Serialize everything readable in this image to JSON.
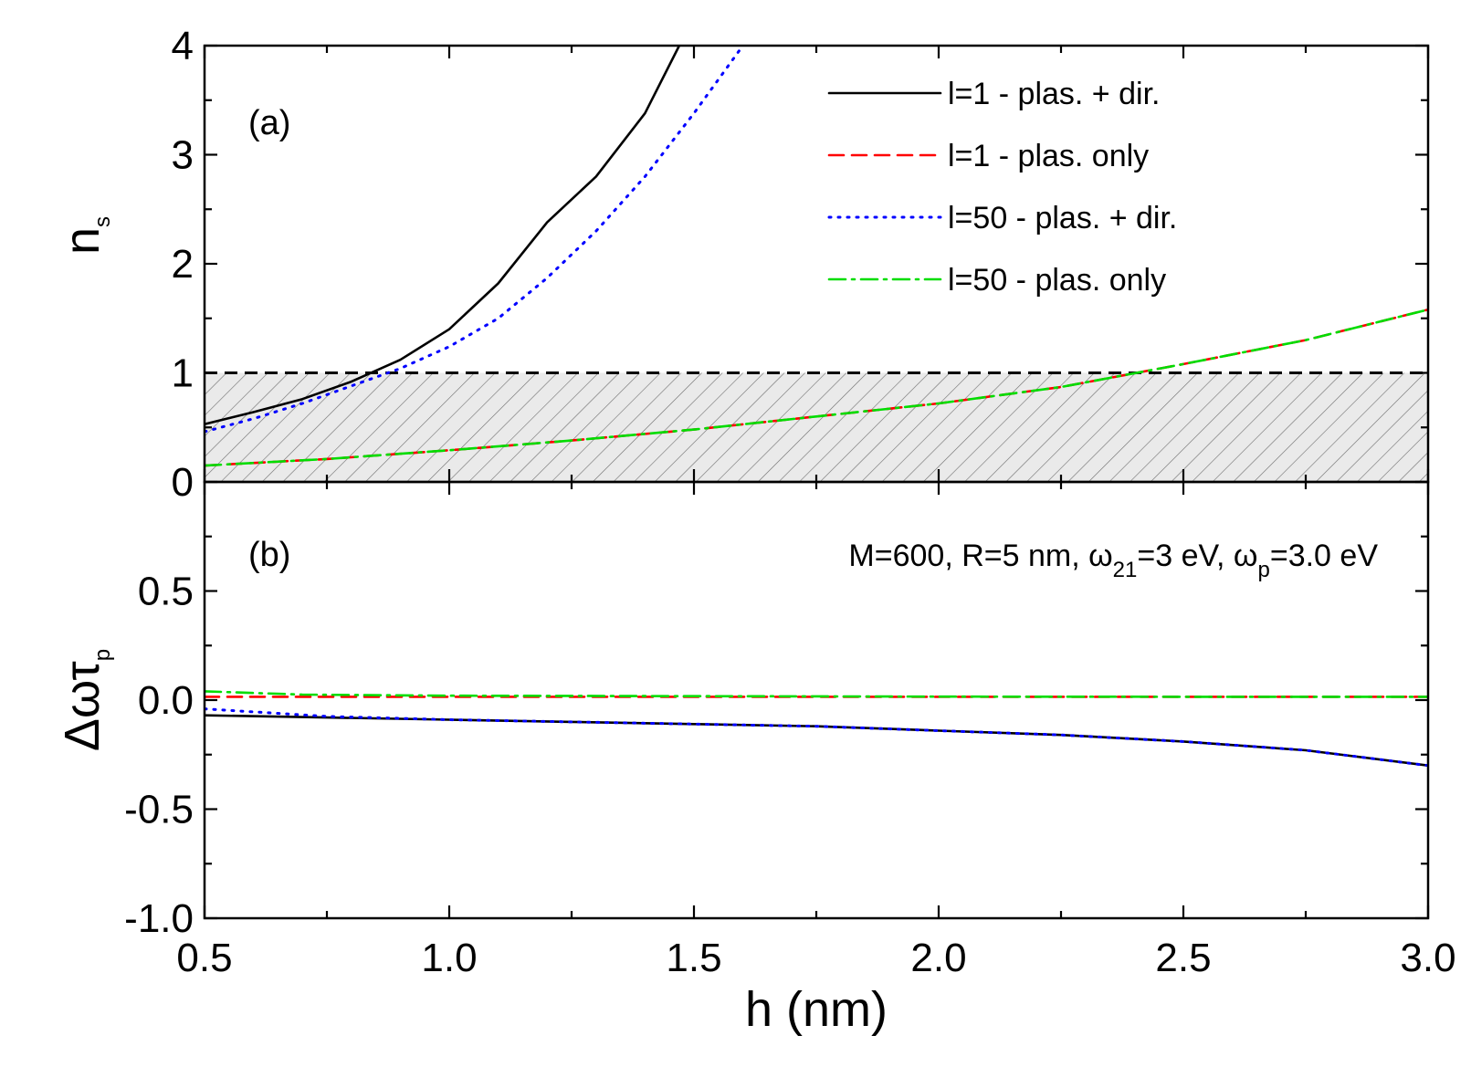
{
  "chart_data": {
    "type": "line",
    "x_label_text": "h (nm)",
    "xlim": [
      0.5,
      3.0
    ],
    "xticks": [
      "0.5",
      "1.0",
      "1.5",
      "2.0",
      "2.5",
      "3.0"
    ],
    "legend_position": "top-right",
    "series_styles": {
      "l1_full": {
        "color": "#000000",
        "dash": "solid"
      },
      "l1_plas": {
        "color": "#ff0000",
        "dash": "dashed"
      },
      "l50_full": {
        "color": "#0000ff",
        "dash": "dotted"
      },
      "l50_plas": {
        "color": "#00dd00",
        "dash": "dashdot"
      }
    },
    "legend": [
      {
        "key": "l1_full",
        "label": "l=1 - plas. + dir."
      },
      {
        "key": "l1_plas",
        "label": "l=1 - plas. only"
      },
      {
        "key": "l50_full",
        "label": "l=50 - plas. + dir."
      },
      {
        "key": "l50_plas",
        "label": "l=50 - plas. only"
      }
    ],
    "panels": [
      {
        "id": "a",
        "panel_label": "(a)",
        "ylabel_main": "n",
        "ylabel_sub": "s",
        "ylim": [
          0,
          4
        ],
        "yticks": [
          "0",
          "1",
          "2",
          "3",
          "4"
        ],
        "threshold": 1,
        "shaded_region": [
          0,
          1
        ],
        "series": [
          {
            "key": "l1_full",
            "x": [
              0.5,
              0.6,
              0.7,
              0.8,
              0.9,
              1.0,
              1.1,
              1.2,
              1.3,
              1.4,
              1.47
            ],
            "y": [
              0.53,
              0.64,
              0.76,
              0.92,
              1.12,
              1.4,
              1.82,
              2.38,
              2.8,
              3.38,
              4.0
            ]
          },
          {
            "key": "l1_plas",
            "x": [
              0.5,
              0.75,
              1.0,
              1.25,
              1.5,
              1.75,
              2.0,
              2.25,
              2.5,
              2.75,
              3.0
            ],
            "y": [
              0.15,
              0.21,
              0.29,
              0.38,
              0.48,
              0.6,
              0.72,
              0.87,
              1.08,
              1.3,
              1.58
            ]
          },
          {
            "key": "l50_full",
            "x": [
              0.5,
              0.6,
              0.7,
              0.8,
              0.9,
              1.0,
              1.1,
              1.2,
              1.3,
              1.4,
              1.5,
              1.6
            ],
            "y": [
              0.46,
              0.58,
              0.72,
              0.88,
              1.04,
              1.24,
              1.5,
              1.87,
              2.3,
              2.8,
              3.38,
              4.0
            ]
          },
          {
            "key": "l50_plas",
            "x": [
              0.5,
              0.75,
              1.0,
              1.25,
              1.5,
              1.75,
              2.0,
              2.25,
              2.5,
              2.75,
              3.0
            ],
            "y": [
              0.15,
              0.21,
              0.29,
              0.38,
              0.48,
              0.6,
              0.72,
              0.87,
              1.08,
              1.3,
              1.58
            ]
          }
        ]
      },
      {
        "id": "b",
        "panel_label": "(b)",
        "ylabel_main": "Δωτ",
        "ylabel_sub": "p",
        "ylim": [
          -1.0,
          1.0
        ],
        "yticks": [
          "-1.0",
          "-0.5",
          "0.0",
          "0.5"
        ],
        "annotation": {
          "text1": "M=600, R=5 nm, ω",
          "sub1": "21",
          "text2": "=3 eV, ω",
          "sub2": "p",
          "text3": "=3.0 eV"
        },
        "series": [
          {
            "key": "l1_full",
            "x": [
              0.5,
              0.75,
              1.0,
              1.25,
              1.5,
              1.75,
              2.0,
              2.25,
              2.5,
              2.75,
              3.0
            ],
            "y": [
              -0.07,
              -0.08,
              -0.09,
              -0.1,
              -0.11,
              -0.12,
              -0.14,
              -0.16,
              -0.19,
              -0.23,
              -0.3
            ]
          },
          {
            "key": "l1_plas",
            "x": [
              0.5,
              1.0,
              1.5,
              2.0,
              2.5,
              3.0
            ],
            "y": [
              0.015,
              0.015,
              0.015,
              0.015,
              0.015,
              0.015
            ]
          },
          {
            "key": "l50_full",
            "x": [
              0.5,
              0.75,
              1.0,
              1.25,
              1.5,
              1.75,
              2.0,
              2.25,
              2.5,
              2.75,
              3.0
            ],
            "y": [
              -0.04,
              -0.075,
              -0.09,
              -0.1,
              -0.11,
              -0.12,
              -0.14,
              -0.16,
              -0.19,
              -0.23,
              -0.3
            ]
          },
          {
            "key": "l50_plas",
            "x": [
              0.5,
              0.7,
              1.0,
              1.5,
              2.0,
              2.5,
              3.0
            ],
            "y": [
              0.04,
              0.025,
              0.02,
              0.018,
              0.016,
              0.015,
              0.015
            ]
          }
        ]
      }
    ]
  }
}
